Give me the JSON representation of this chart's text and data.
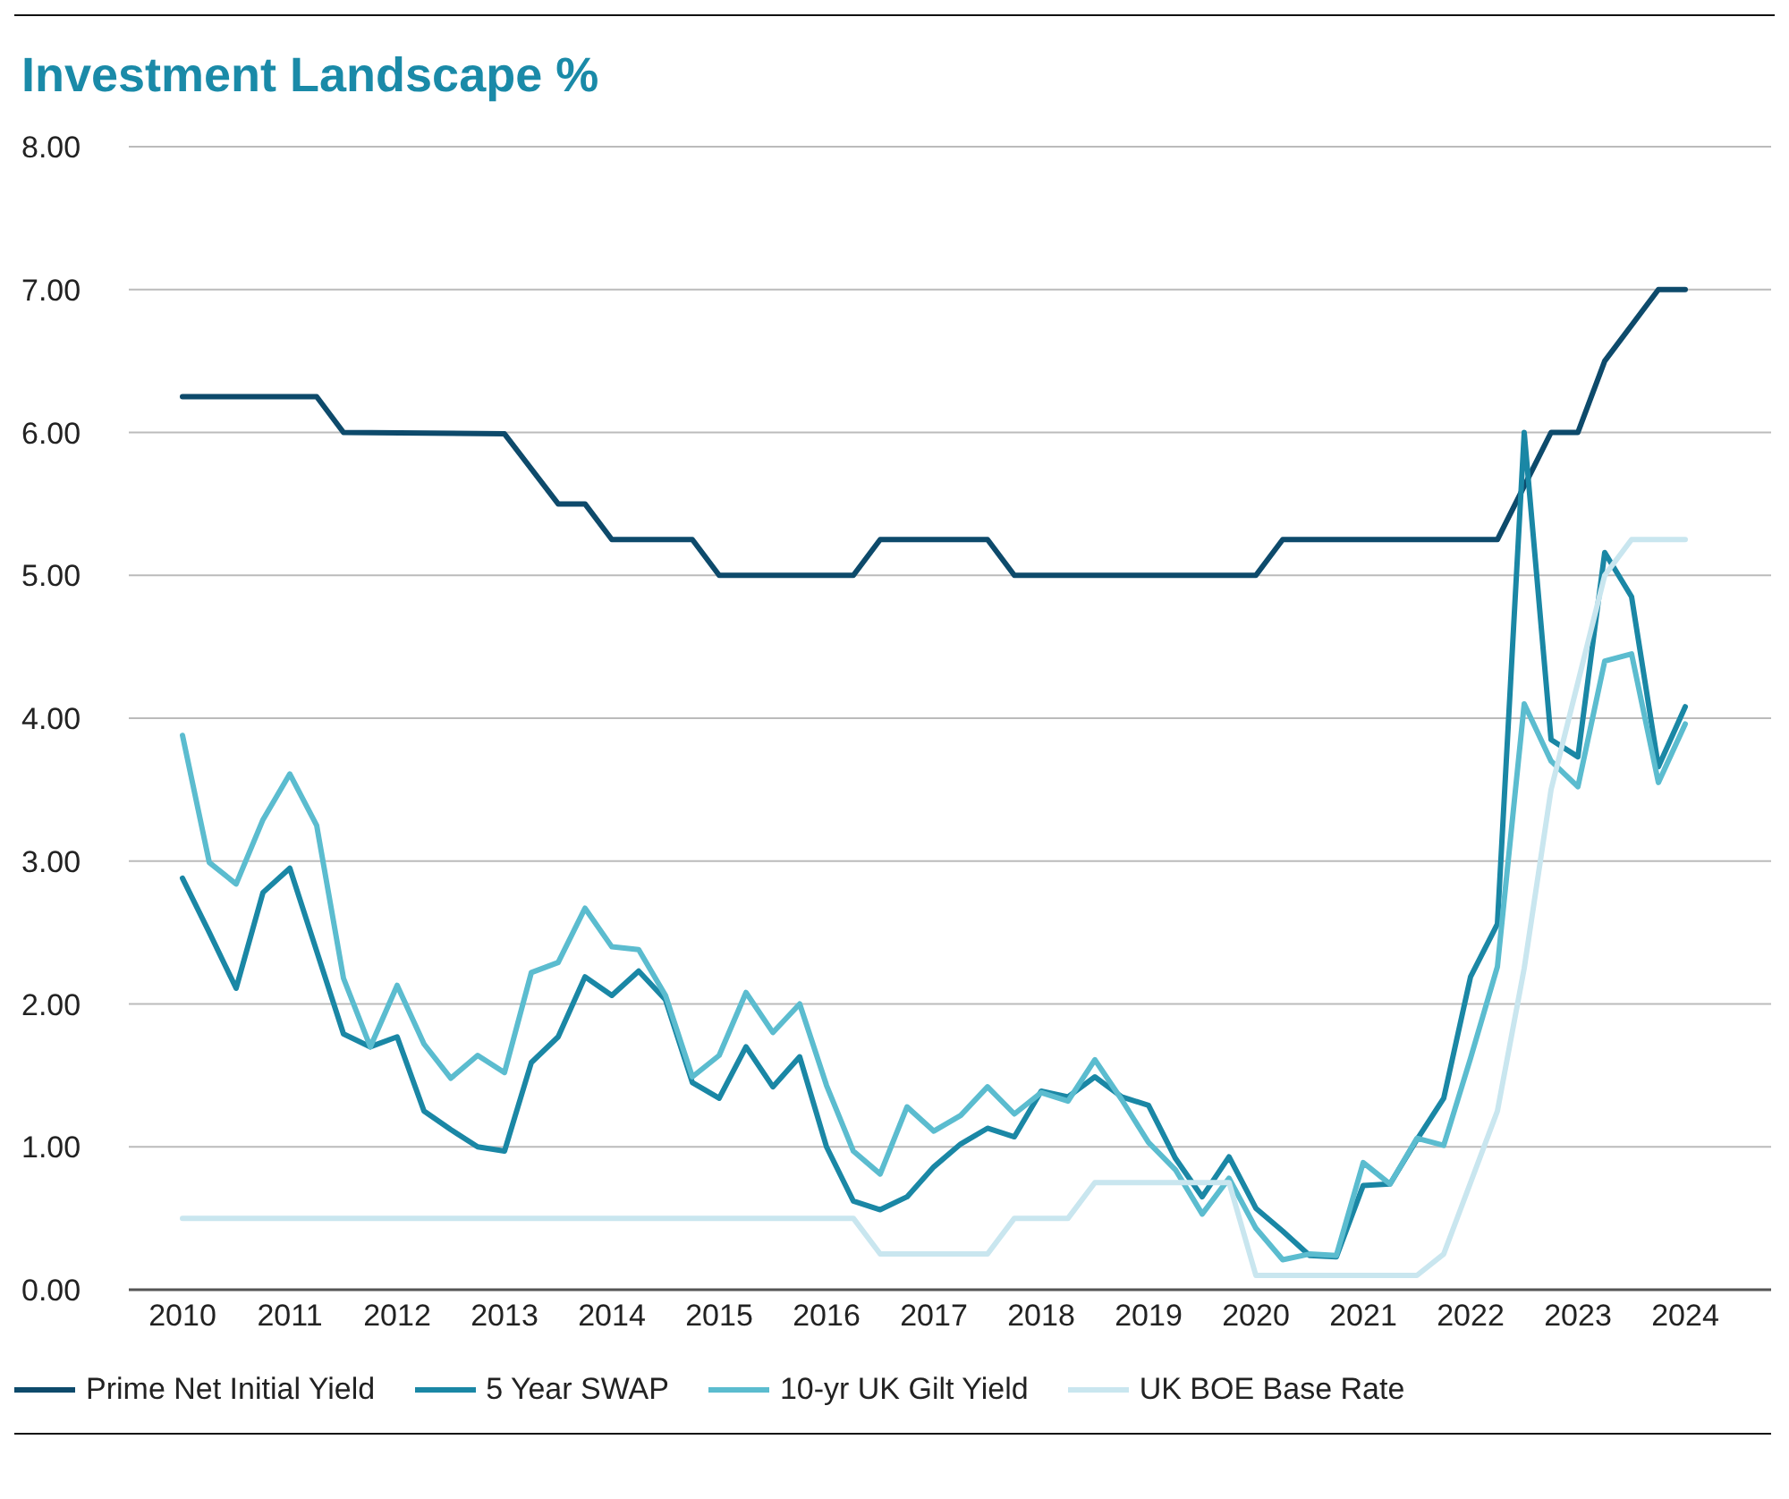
{
  "chart_data": {
    "type": "line",
    "title": "Investment Landscape %",
    "xlim": [
      2009.5,
      2024.8
    ],
    "xticks": [
      2010,
      2011,
      2012,
      2013,
      2014,
      2015,
      2016,
      2017,
      2018,
      2019,
      2020,
      2021,
      2022,
      2023,
      2024
    ],
    "ylim": [
      0,
      8
    ],
    "yticks": [
      {
        "value": 0,
        "label": "0.00"
      },
      {
        "value": 1,
        "label": "1.00"
      },
      {
        "value": 2,
        "label": "2.00"
      },
      {
        "value": 3,
        "label": "3.00"
      },
      {
        "value": 4,
        "label": "4.00"
      },
      {
        "value": 5,
        "label": "5.00"
      },
      {
        "value": 6,
        "label": "6.00"
      },
      {
        "value": 7,
        "label": "7.00"
      },
      {
        "value": 8,
        "label": "8.00"
      }
    ],
    "grid": "y",
    "legend": "bottom",
    "marker": "none",
    "line_style": "solid",
    "series": [
      {
        "name": "Prime Net Initial Yield",
        "color": "#0d4a6b",
        "x": [
          2010,
          2011.25,
          2011.5,
          2013,
          2013.5,
          2013.75,
          2014,
          2014.75,
          2015,
          2016.25,
          2016.5,
          2017.5,
          2017.75,
          2020,
          2020.25,
          2022.25,
          2022.75,
          2023,
          2023.25,
          2023.75,
          2024
        ],
        "values": [
          6.25,
          6.25,
          6.0,
          5.99,
          5.5,
          5.5,
          5.25,
          5.25,
          5.0,
          5.0,
          5.25,
          5.25,
          5.0,
          5.0,
          5.25,
          5.25,
          6.0,
          6.0,
          6.5,
          7.0,
          7.0
        ]
      },
      {
        "name": "5 Year SWAP",
        "color": "#1a87a5",
        "x": [
          2010,
          2010.25,
          2010.5,
          2010.75,
          2011,
          2011.25,
          2011.5,
          2011.75,
          2012,
          2012.25,
          2012.5,
          2012.75,
          2013,
          2013.25,
          2013.5,
          2013.75,
          2014,
          2014.25,
          2014.5,
          2014.75,
          2015,
          2015.25,
          2015.5,
          2015.75,
          2016,
          2016.25,
          2016.5,
          2016.75,
          2017,
          2017.25,
          2017.5,
          2017.75,
          2018,
          2018.25,
          2018.5,
          2018.75,
          2019,
          2019.25,
          2019.5,
          2019.75,
          2020,
          2020.25,
          2020.5,
          2020.75,
          2021,
          2021.25,
          2021.5,
          2021.75,
          2022,
          2022.25,
          2022.5,
          2022.75,
          2023,
          2023.25,
          2023.5,
          2023.75,
          2024
        ],
        "values": [
          2.88,
          2.5,
          2.11,
          2.78,
          2.95,
          2.37,
          1.79,
          1.7,
          1.77,
          1.25,
          1.12,
          1.0,
          0.97,
          1.59,
          1.77,
          2.19,
          2.06,
          2.23,
          2.03,
          1.45,
          1.34,
          1.7,
          1.42,
          1.63,
          1.0,
          0.62,
          0.56,
          0.65,
          0.86,
          1.02,
          1.13,
          1.07,
          1.39,
          1.35,
          1.49,
          1.35,
          1.29,
          0.92,
          0.65,
          0.93,
          0.57,
          0.41,
          0.24,
          0.23,
          0.73,
          0.74,
          1.05,
          1.34,
          2.19,
          2.56,
          6.0,
          3.85,
          3.73,
          5.16,
          4.85,
          3.66,
          4.08
        ]
      },
      {
        "name": "10-yr UK Gilt Yield",
        "color": "#5bbccf",
        "x": [
          2010,
          2010.25,
          2010.5,
          2010.75,
          2011,
          2011.25,
          2011.5,
          2011.75,
          2012,
          2012.25,
          2012.5,
          2012.75,
          2013,
          2013.25,
          2013.5,
          2013.75,
          2014,
          2014.25,
          2014.5,
          2014.75,
          2015,
          2015.25,
          2015.5,
          2015.75,
          2016,
          2016.25,
          2016.5,
          2016.75,
          2017,
          2017.25,
          2017.5,
          2017.75,
          2018,
          2018.25,
          2018.5,
          2018.75,
          2019,
          2019.25,
          2019.5,
          2019.75,
          2020,
          2020.25,
          2020.5,
          2020.75,
          2021,
          2021.25,
          2021.5,
          2021.75,
          2022,
          2022.25,
          2022.5,
          2022.75,
          2023,
          2023.25,
          2023.5,
          2023.75,
          2024
        ],
        "values": [
          3.88,
          2.99,
          2.84,
          3.29,
          3.61,
          3.25,
          2.18,
          1.7,
          2.13,
          1.72,
          1.48,
          1.64,
          1.52,
          2.22,
          2.29,
          2.67,
          2.4,
          2.38,
          2.06,
          1.49,
          1.64,
          2.08,
          1.8,
          2.0,
          1.43,
          0.97,
          0.81,
          1.28,
          1.11,
          1.22,
          1.42,
          1.23,
          1.38,
          1.32,
          1.61,
          1.33,
          1.03,
          0.84,
          0.53,
          0.78,
          0.43,
          0.21,
          0.25,
          0.24,
          0.89,
          0.74,
          1.06,
          1.01,
          1.62,
          2.26,
          4.1,
          3.7,
          3.52,
          4.4,
          4.45,
          3.55,
          3.96
        ]
      },
      {
        "name": "UK BOE Base Rate",
        "color": "#c9e6ef",
        "x": [
          2010,
          2016.25,
          2016.5,
          2017.5,
          2017.75,
          2018.25,
          2018.5,
          2019.75,
          2020,
          2021.5,
          2021.75,
          2022,
          2022.25,
          2022.5,
          2022.75,
          2023,
          2023.25,
          2023.5,
          2024
        ],
        "values": [
          0.5,
          0.5,
          0.25,
          0.25,
          0.5,
          0.5,
          0.75,
          0.75,
          0.1,
          0.1,
          0.25,
          0.75,
          1.25,
          2.25,
          3.5,
          4.25,
          5.0,
          5.25,
          5.25
        ]
      }
    ]
  }
}
